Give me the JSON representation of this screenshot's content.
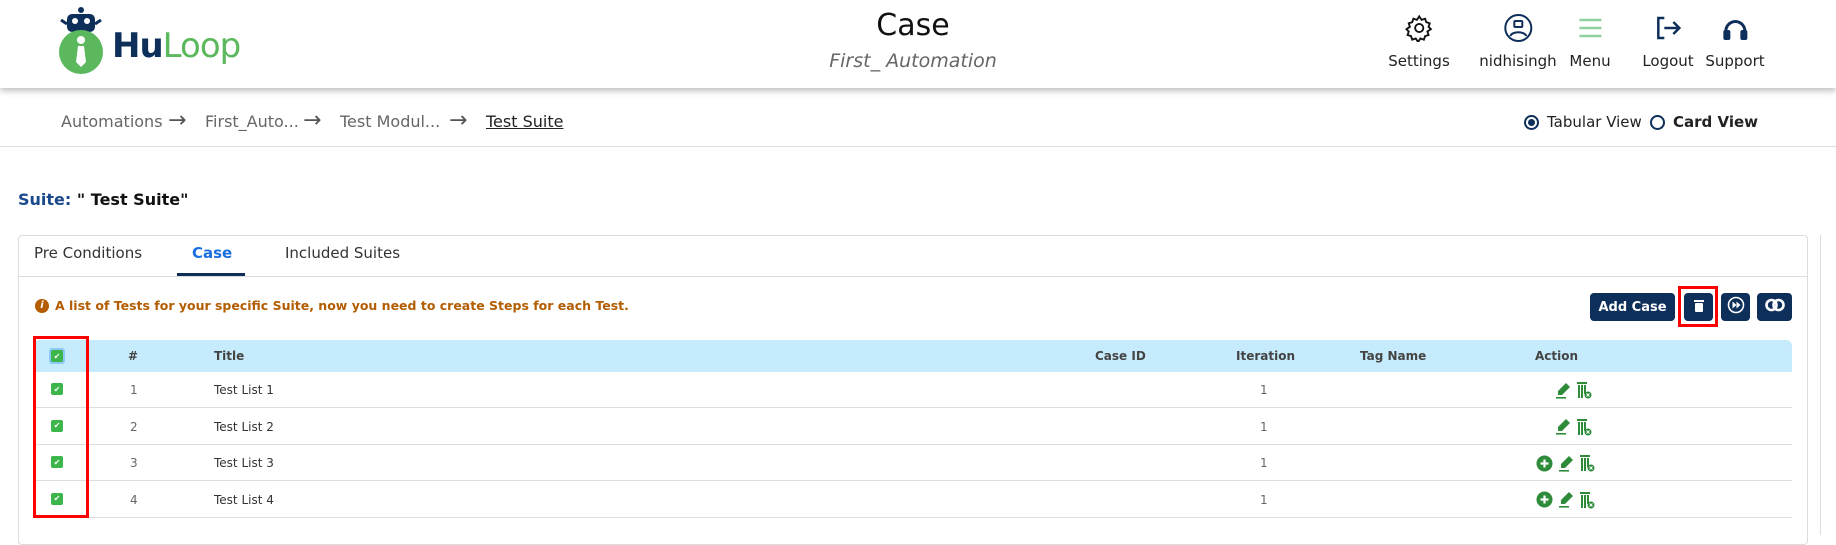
{
  "header": {
    "logo_hu": "Hu",
    "logo_loop": "Loop",
    "title": "Case",
    "subtitle": "First_ Automation",
    "nav": [
      {
        "label": "Settings",
        "icon": "gear-icon"
      },
      {
        "label": "nidhisingh",
        "icon": "user-robot-icon"
      },
      {
        "label": "Menu",
        "icon": "hamburger-icon"
      },
      {
        "label": "Logout",
        "icon": "logout-icon"
      },
      {
        "label": "Support",
        "icon": "headphones-icon"
      }
    ]
  },
  "breadcrumb": [
    "Automations",
    "First_Auto...",
    "Test Modul...",
    "Test Suite"
  ],
  "views": {
    "tabular": "Tabular View",
    "card": "Card View",
    "selected": "tabular"
  },
  "suite": {
    "label": "Suite:",
    "name": "\" Test Suite\""
  },
  "tabs": [
    {
      "label": "Pre Conditions"
    },
    {
      "label": "Case",
      "active": true
    },
    {
      "label": "Included Suites"
    }
  ],
  "info": "A list of Tests for your specific Suite, now you need to create Steps for each Test.",
  "buttons": {
    "add_case": "Add Case"
  },
  "table": {
    "columns": [
      "#",
      "Title",
      "Case ID",
      "Iteration",
      "Tag Name",
      "Action"
    ],
    "rows": [
      {
        "num": "1",
        "title": "Test List 1",
        "case_id": "",
        "iteration": "1",
        "tag": "",
        "checked": true,
        "actions": [
          "edit",
          "delete"
        ]
      },
      {
        "num": "2",
        "title": "Test List 2",
        "case_id": "",
        "iteration": "1",
        "tag": "",
        "checked": true,
        "actions": [
          "edit",
          "delete"
        ]
      },
      {
        "num": "3",
        "title": "Test List 3",
        "case_id": "",
        "iteration": "1",
        "tag": "",
        "checked": true,
        "actions": [
          "add",
          "edit",
          "delete"
        ]
      },
      {
        "num": "4",
        "title": "Test List 4",
        "case_id": "",
        "iteration": "1",
        "tag": "",
        "checked": true,
        "actions": [
          "add",
          "edit",
          "delete"
        ]
      }
    ]
  },
  "colors": {
    "brand_navy": "#0e2f5a",
    "brand_green": "#5cb85c",
    "action_green": "#2e8b3a",
    "highlight": "#ff0000",
    "table_header": "#c5ebfc"
  }
}
